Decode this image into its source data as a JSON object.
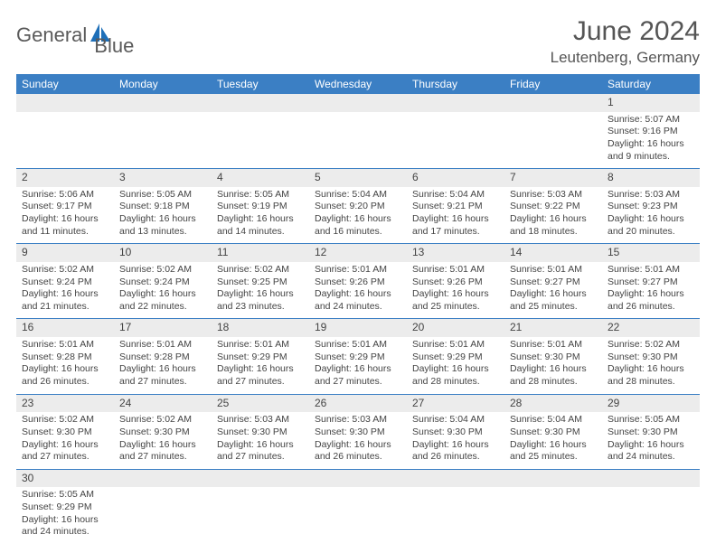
{
  "logo": {
    "text1": "General",
    "text2": "Blue"
  },
  "title": "June 2024",
  "location": "Leutenberg, Germany",
  "colors": {
    "header_bg": "#3b7fc4",
    "header_text": "#ffffff",
    "daynum_bg": "#ececec",
    "border": "#3b7fc4",
    "logo_gray": "#5a5a5a",
    "logo_blue": "#1e6fb8"
  },
  "weekdays": [
    "Sunday",
    "Monday",
    "Tuesday",
    "Wednesday",
    "Thursday",
    "Friday",
    "Saturday"
  ],
  "weeks": [
    {
      "nums": [
        "",
        "",
        "",
        "",
        "",
        "",
        "1"
      ],
      "details": [
        "",
        "",
        "",
        "",
        "",
        "",
        "Sunrise: 5:07 AM\nSunset: 9:16 PM\nDaylight: 16 hours and 9 minutes."
      ]
    },
    {
      "nums": [
        "2",
        "3",
        "4",
        "5",
        "6",
        "7",
        "8"
      ],
      "details": [
        "Sunrise: 5:06 AM\nSunset: 9:17 PM\nDaylight: 16 hours and 11 minutes.",
        "Sunrise: 5:05 AM\nSunset: 9:18 PM\nDaylight: 16 hours and 13 minutes.",
        "Sunrise: 5:05 AM\nSunset: 9:19 PM\nDaylight: 16 hours and 14 minutes.",
        "Sunrise: 5:04 AM\nSunset: 9:20 PM\nDaylight: 16 hours and 16 minutes.",
        "Sunrise: 5:04 AM\nSunset: 9:21 PM\nDaylight: 16 hours and 17 minutes.",
        "Sunrise: 5:03 AM\nSunset: 9:22 PM\nDaylight: 16 hours and 18 minutes.",
        "Sunrise: 5:03 AM\nSunset: 9:23 PM\nDaylight: 16 hours and 20 minutes."
      ]
    },
    {
      "nums": [
        "9",
        "10",
        "11",
        "12",
        "13",
        "14",
        "15"
      ],
      "details": [
        "Sunrise: 5:02 AM\nSunset: 9:24 PM\nDaylight: 16 hours and 21 minutes.",
        "Sunrise: 5:02 AM\nSunset: 9:24 PM\nDaylight: 16 hours and 22 minutes.",
        "Sunrise: 5:02 AM\nSunset: 9:25 PM\nDaylight: 16 hours and 23 minutes.",
        "Sunrise: 5:01 AM\nSunset: 9:26 PM\nDaylight: 16 hours and 24 minutes.",
        "Sunrise: 5:01 AM\nSunset: 9:26 PM\nDaylight: 16 hours and 25 minutes.",
        "Sunrise: 5:01 AM\nSunset: 9:27 PM\nDaylight: 16 hours and 25 minutes.",
        "Sunrise: 5:01 AM\nSunset: 9:27 PM\nDaylight: 16 hours and 26 minutes."
      ]
    },
    {
      "nums": [
        "16",
        "17",
        "18",
        "19",
        "20",
        "21",
        "22"
      ],
      "details": [
        "Sunrise: 5:01 AM\nSunset: 9:28 PM\nDaylight: 16 hours and 26 minutes.",
        "Sunrise: 5:01 AM\nSunset: 9:28 PM\nDaylight: 16 hours and 27 minutes.",
        "Sunrise: 5:01 AM\nSunset: 9:29 PM\nDaylight: 16 hours and 27 minutes.",
        "Sunrise: 5:01 AM\nSunset: 9:29 PM\nDaylight: 16 hours and 27 minutes.",
        "Sunrise: 5:01 AM\nSunset: 9:29 PM\nDaylight: 16 hours and 28 minutes.",
        "Sunrise: 5:01 AM\nSunset: 9:30 PM\nDaylight: 16 hours and 28 minutes.",
        "Sunrise: 5:02 AM\nSunset: 9:30 PM\nDaylight: 16 hours and 28 minutes."
      ]
    },
    {
      "nums": [
        "23",
        "24",
        "25",
        "26",
        "27",
        "28",
        "29"
      ],
      "details": [
        "Sunrise: 5:02 AM\nSunset: 9:30 PM\nDaylight: 16 hours and 27 minutes.",
        "Sunrise: 5:02 AM\nSunset: 9:30 PM\nDaylight: 16 hours and 27 minutes.",
        "Sunrise: 5:03 AM\nSunset: 9:30 PM\nDaylight: 16 hours and 27 minutes.",
        "Sunrise: 5:03 AM\nSunset: 9:30 PM\nDaylight: 16 hours and 26 minutes.",
        "Sunrise: 5:04 AM\nSunset: 9:30 PM\nDaylight: 16 hours and 26 minutes.",
        "Sunrise: 5:04 AM\nSunset: 9:30 PM\nDaylight: 16 hours and 25 minutes.",
        "Sunrise: 5:05 AM\nSunset: 9:30 PM\nDaylight: 16 hours and 24 minutes."
      ]
    },
    {
      "nums": [
        "30",
        "",
        "",
        "",
        "",
        "",
        ""
      ],
      "details": [
        "Sunrise: 5:05 AM\nSunset: 9:29 PM\nDaylight: 16 hours and 24 minutes.",
        "",
        "",
        "",
        "",
        "",
        ""
      ]
    }
  ]
}
